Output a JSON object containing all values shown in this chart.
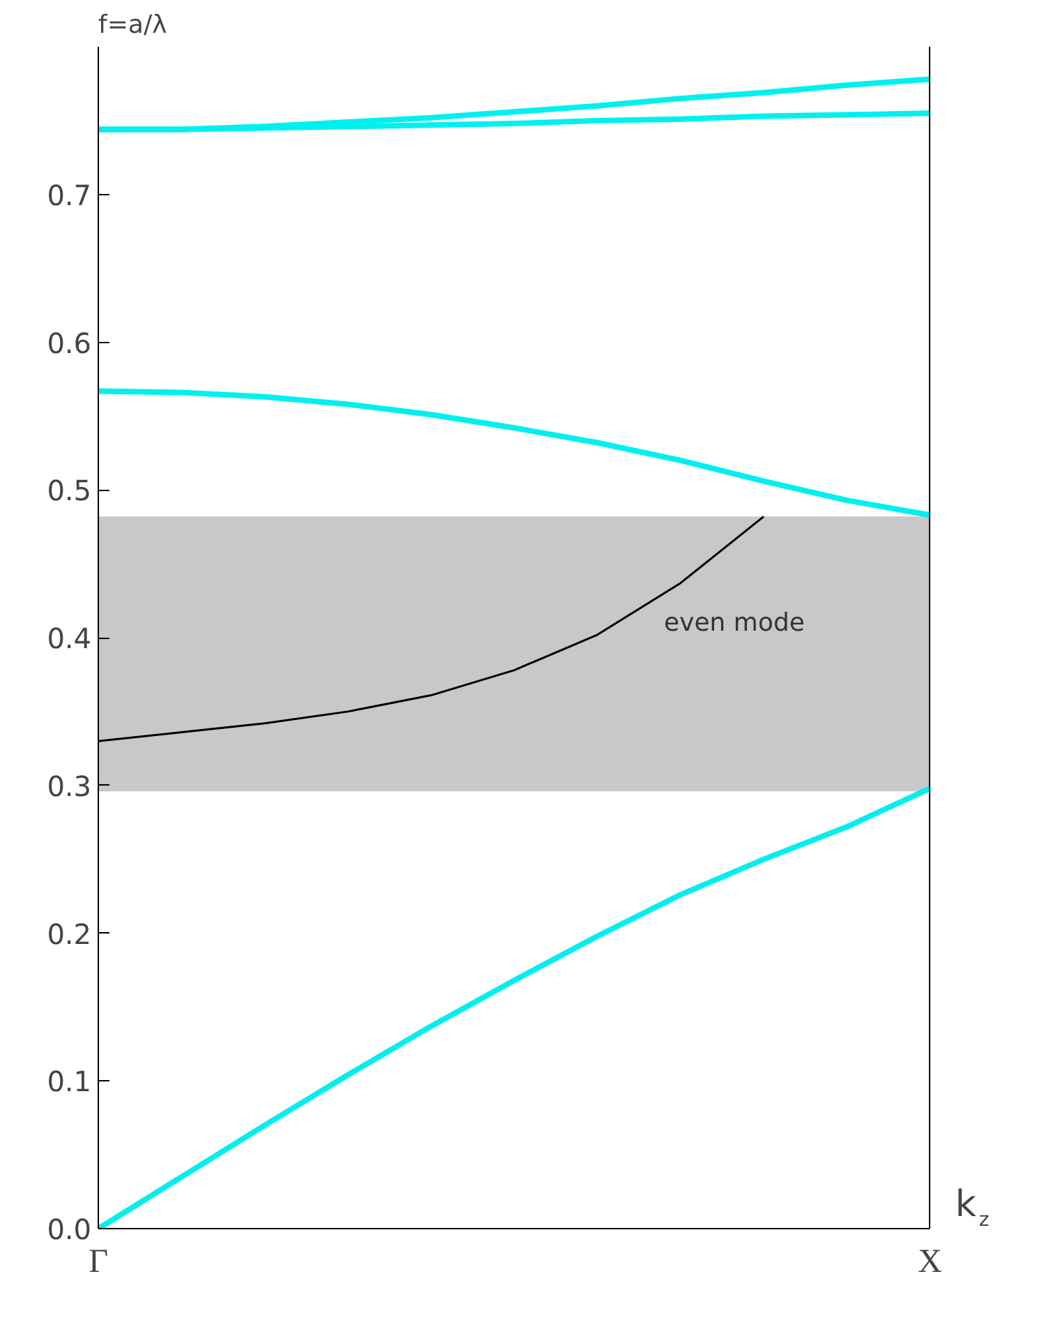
{
  "chart_data": {
    "type": "line",
    "ylabel": "f=a/λ",
    "xlabel": "k$_{z}$",
    "categories": [
      "Γ",
      null,
      null,
      null,
      null,
      null,
      null,
      null,
      null,
      null,
      "X"
    ],
    "ylim": [
      0,
      0.8
    ],
    "yticks": [
      {
        "value": 0,
        "label": "0.0"
      },
      0.1,
      0.2,
      0.3,
      0.4,
      0.5,
      0.6,
      0.7
    ],
    "series": [
      {
        "color": "#00f0f0",
        "values": [
          0,
          0.035,
          0.07,
          0.104,
          0.137,
          0.168,
          0.198,
          0.226,
          0.25,
          0.272,
          0.298
        ]
      },
      {
        "color": "#00f0f0",
        "values": [
          0.567,
          0.566,
          0.563,
          0.558,
          0.551,
          0.542,
          0.532,
          0.52,
          0.506,
          0.493,
          0.483
        ]
      },
      {
        "color": "#00f0f0",
        "values": [
          0.744,
          0.744,
          0.746,
          0.749,
          0.752,
          0.756,
          0.76,
          0.765,
          0.769,
          0.774,
          0.778
        ]
      },
      {
        "color": "#00f0f0",
        "values": [
          0.744,
          0.744,
          0.745,
          0.746,
          0.747,
          0.748,
          0.75,
          0.751,
          0.753,
          0.754,
          0.755
        ]
      },
      {
        "color": "#000000",
        "values": [
          0.33,
          0.336,
          0.342,
          0.35,
          0.361,
          0.378,
          0.402,
          0.437,
          0.482,
          null,
          null
        ]
      }
    ],
    "bands": [
      {
        "axis": "y",
        "from": 0.296,
        "to": 0.482,
        "color": "#c8c8c8"
      }
    ],
    "annotations": [
      "even mode"
    ],
    "grid": false
  }
}
